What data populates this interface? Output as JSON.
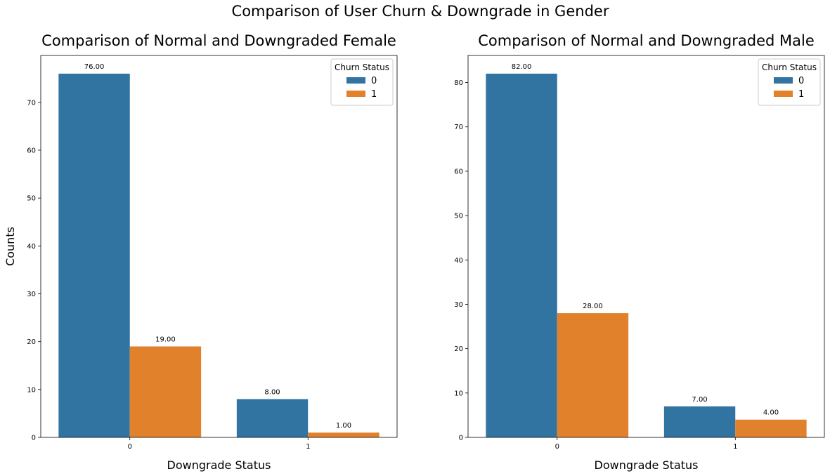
{
  "suptitle": "Comparison of User Churn & Downgrade in Gender",
  "colors": {
    "series_0": "#3274a1",
    "series_1": "#e1812c"
  },
  "chart_data": [
    {
      "type": "bar",
      "title": "Comparison of Normal and Downgraded Female",
      "xlabel": "Downgrade Status",
      "ylabel": "Counts",
      "categories": [
        "0",
        "1"
      ],
      "ylim": [
        0,
        79.8
      ],
      "yticks": [
        0,
        10,
        20,
        30,
        40,
        50,
        60,
        70
      ],
      "legend": {
        "title": "Churn Status",
        "placement": "top-right"
      },
      "series": [
        {
          "name": "0",
          "values": [
            76,
            8
          ],
          "labels": [
            "76.00",
            "8.00"
          ]
        },
        {
          "name": "1",
          "values": [
            19,
            1
          ],
          "labels": [
            "19.00",
            "1.00"
          ]
        }
      ]
    },
    {
      "type": "bar",
      "title": "Comparison of Normal and Downgraded Male",
      "xlabel": "Downgrade Status",
      "ylabel": "",
      "categories": [
        "0",
        "1"
      ],
      "ylim": [
        0,
        86.1
      ],
      "yticks": [
        0,
        10,
        20,
        30,
        40,
        50,
        60,
        70,
        80
      ],
      "legend": {
        "title": "Churn Status",
        "placement": "top-right"
      },
      "series": [
        {
          "name": "0",
          "values": [
            82,
            7
          ],
          "labels": [
            "82.00",
            "7.00"
          ]
        },
        {
          "name": "1",
          "values": [
            28,
            4
          ],
          "labels": [
            "28.00",
            "4.00"
          ]
        }
      ]
    }
  ]
}
